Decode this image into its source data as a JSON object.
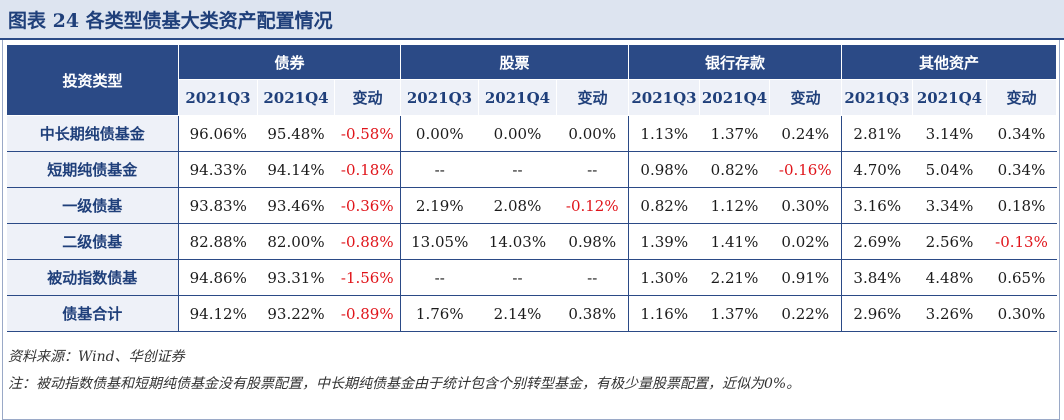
{
  "title": "图表 24    各类型债基大类资产配置情况",
  "table": {
    "corner_label": "投资类型",
    "groups": [
      "债券",
      "股票",
      "银行存款",
      "其他资产"
    ],
    "subheaders": [
      "2021Q3",
      "2021Q4",
      "变动"
    ],
    "rows": [
      {
        "label": "中长期纯债基金",
        "cells": [
          "96.06%",
          "95.48%",
          "-0.58%",
          "0.00%",
          "0.00%",
          "0.00%",
          "1.13%",
          "1.37%",
          "0.24%",
          "2.81%",
          "3.14%",
          "0.34%"
        ]
      },
      {
        "label": "短期纯债基金",
        "cells": [
          "94.33%",
          "94.14%",
          "-0.18%",
          "--",
          "--",
          "--",
          "0.98%",
          "0.82%",
          "-0.16%",
          "4.70%",
          "5.04%",
          "0.34%"
        ]
      },
      {
        "label": "一级债基",
        "cells": [
          "93.83%",
          "93.46%",
          "-0.36%",
          "2.19%",
          "2.08%",
          "-0.12%",
          "0.82%",
          "1.12%",
          "0.30%",
          "3.16%",
          "3.34%",
          "0.18%"
        ]
      },
      {
        "label": "二级债基",
        "cells": [
          "82.88%",
          "82.00%",
          "-0.88%",
          "13.05%",
          "14.03%",
          "0.98%",
          "1.39%",
          "1.41%",
          "0.02%",
          "2.69%",
          "2.56%",
          "-0.13%"
        ]
      },
      {
        "label": "被动指数债基",
        "cells": [
          "94.86%",
          "93.31%",
          "-1.56%",
          "--",
          "--",
          "--",
          "1.30%",
          "2.21%",
          "0.91%",
          "3.84%",
          "4.48%",
          "0.65%"
        ]
      },
      {
        "label": "债基合计",
        "cells": [
          "94.12%",
          "93.22%",
          "-0.89%",
          "1.76%",
          "2.14%",
          "0.38%",
          "1.16%",
          "1.37%",
          "0.22%",
          "2.96%",
          "3.26%",
          "0.30%"
        ]
      }
    ]
  },
  "source": "资料来源：Wind、华创证券",
  "note": "注：被动指数债基和短期纯债基金没有股票配置，中长期纯债基金由于统计包含个别转型基金，有极少量股票配置，近似为0%。"
}
